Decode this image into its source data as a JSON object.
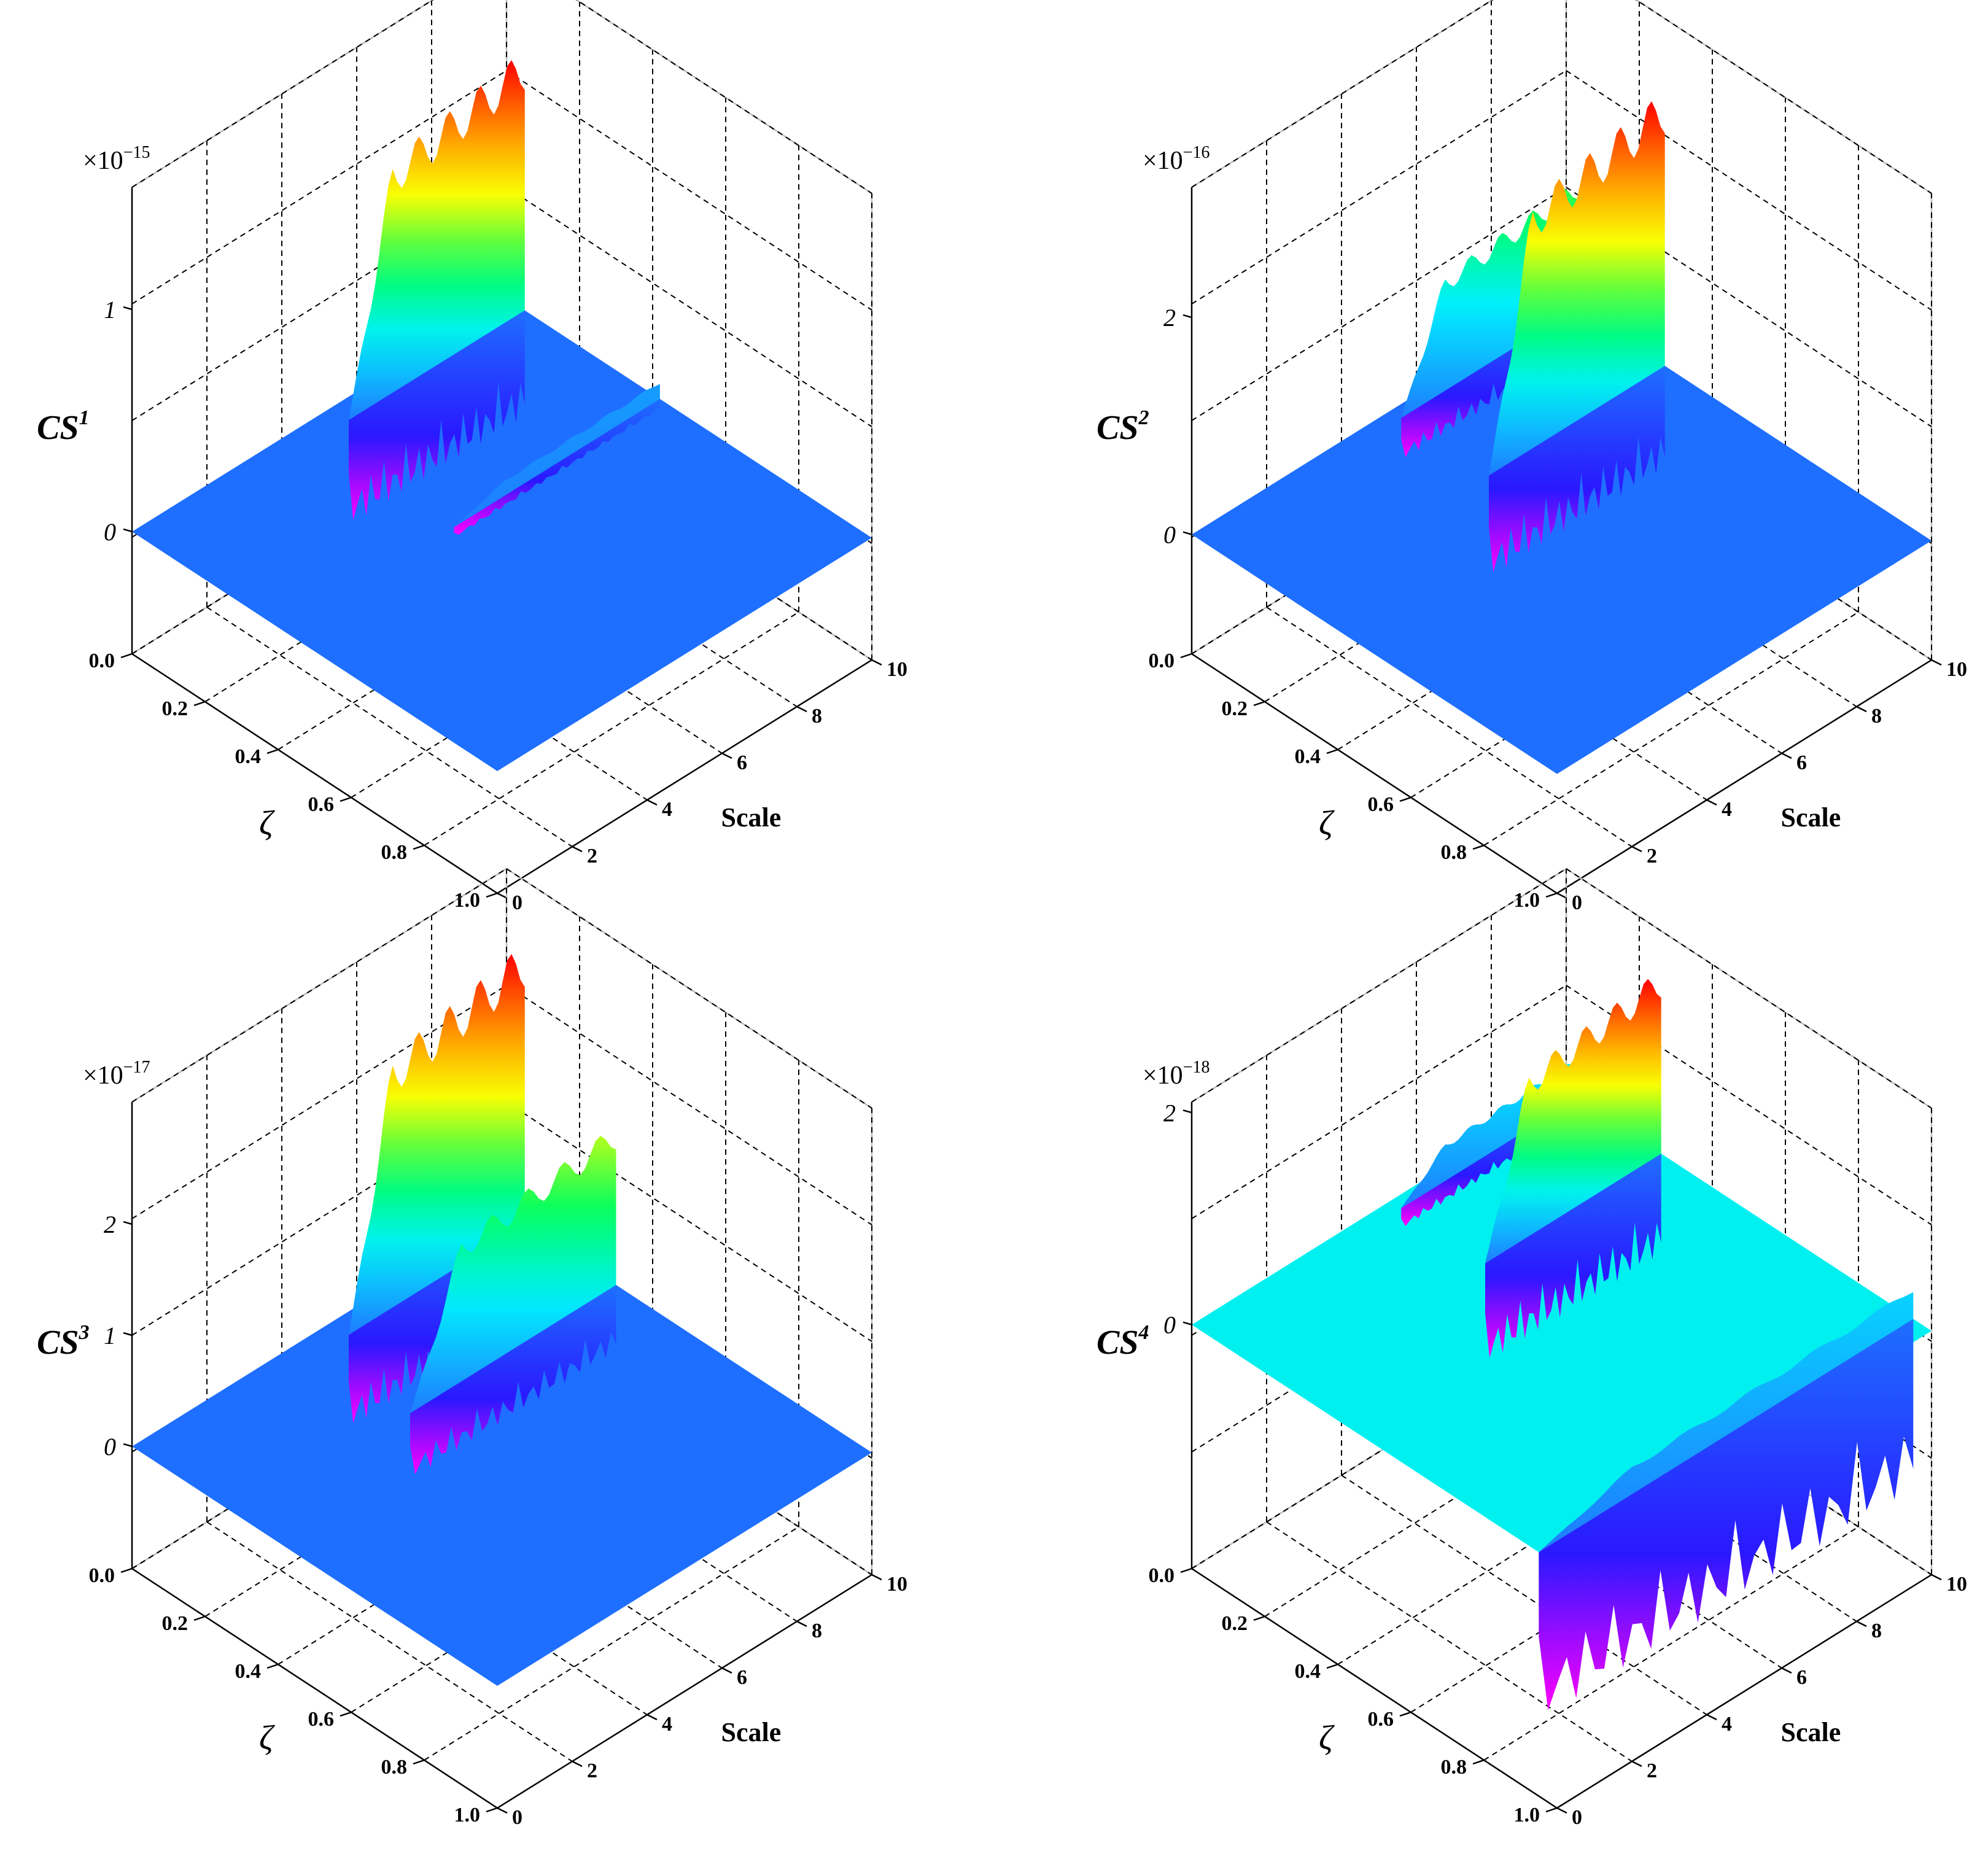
{
  "figure": {
    "background": "#ffffff"
  },
  "chart_data": [
    {
      "type": "surface",
      "panel": "top-left",
      "zlabel_base": "CS",
      "zlabel_sup": "1",
      "multiplier_base": "×10",
      "multiplier_exp": "−15",
      "xlabel": "ζ",
      "ylabel": "Scale",
      "x_ticks": [
        "0.0",
        "0.2",
        "0.4",
        "0.6",
        "0.8",
        "1.0"
      ],
      "y_ticks": [
        "0",
        "2",
        "4",
        "6",
        "8",
        "10"
      ],
      "z_ticks": [
        {
          "label": "1",
          "value": 1
        },
        {
          "label": "0",
          "value": 0
        }
      ],
      "xlim": [
        0,
        1
      ],
      "ylim": [
        0,
        10
      ],
      "zlim": [
        -0.55,
        1.55
      ],
      "grid": true,
      "colormap": "rainbow",
      "ridges": [
        {
          "x": 0.05,
          "y_range": [
            5.3,
            10
          ],
          "peak": 1.18,
          "trough": -0.48
        },
        {
          "x": 0.42,
          "y_range": [
            4.5,
            10
          ],
          "peak": 0.08,
          "trough": -0.05
        }
      ]
    },
    {
      "type": "surface",
      "panel": "top-right",
      "zlabel_base": "CS",
      "zlabel_sup": "2",
      "multiplier_base": "×10",
      "multiplier_exp": "−16",
      "xlabel": "ζ",
      "ylabel": "Scale",
      "x_ticks": [
        "0.0",
        "0.2",
        "0.4",
        "0.6",
        "0.8",
        "1.0"
      ],
      "y_ticks": [
        "0",
        "2",
        "4",
        "6",
        "8",
        "10"
      ],
      "z_ticks": [
        {
          "label": "2",
          "value": 2
        },
        {
          "label": "0",
          "value": 0
        }
      ],
      "xlim": [
        0,
        1
      ],
      "ylim": [
        0,
        10
      ],
      "zlim": [
        -1.1,
        3.2
      ],
      "grid": true,
      "colormap": "rainbow",
      "ridges": [
        {
          "x": 0.03,
          "y_range": [
            5.3,
            10
          ],
          "peak": 1.2,
          "trough": -0.4
        },
        {
          "x": 0.27,
          "y_range": [
            5.3,
            10
          ],
          "peak": 2.55,
          "trough": -0.95
        }
      ]
    },
    {
      "type": "surface",
      "panel": "bottom-left",
      "zlabel_base": "CS",
      "zlabel_sup": "3",
      "multiplier_base": "×10",
      "multiplier_exp": "−17",
      "xlabel": "ζ",
      "ylabel": "Scale",
      "x_ticks": [
        "0.0",
        "0.2",
        "0.4",
        "0.6",
        "0.8",
        "1.0"
      ],
      "y_ticks": [
        "0",
        "2",
        "4",
        "6",
        "8",
        "10"
      ],
      "z_ticks": [
        {
          "label": "2",
          "value": 2
        },
        {
          "label": "1",
          "value": 1
        },
        {
          "label": "0",
          "value": 0
        }
      ],
      "xlim": [
        0,
        1
      ],
      "ylim": [
        0,
        10
      ],
      "zlim": [
        -1.1,
        3.1
      ],
      "grid": true,
      "colormap": "rainbow",
      "ridges": [
        {
          "x": 0.05,
          "y_range": [
            5.3,
            10
          ],
          "peak": 2.55,
          "trough": -0.85
        },
        {
          "x": 0.3,
          "y_range": [
            4.5,
            10
          ],
          "peak": 1.45,
          "trough": -0.6
        }
      ]
    },
    {
      "type": "surface",
      "panel": "bottom-right",
      "zlabel_base": "CS",
      "zlabel_sup": "4",
      "multiplier_base": "×10",
      "multiplier_exp": "−18",
      "xlabel": "ζ",
      "ylabel": "Scale",
      "x_ticks": [
        "0.0",
        "0.2",
        "0.4",
        "0.6",
        "0.8",
        "1.0"
      ],
      "y_ticks": [
        "0",
        "2",
        "4",
        "6",
        "8",
        "10"
      ],
      "z_ticks": [
        {
          "label": "2",
          "value": 2
        },
        {
          "label": "0",
          "value": 0
        }
      ],
      "xlim": [
        0,
        1
      ],
      "ylim": [
        0,
        10
      ],
      "zlim": [
        -2.3,
        2.1
      ],
      "grid": true,
      "colormap": "rainbow",
      "ridges": [
        {
          "x": 0.03,
          "y_range": [
            5.3,
            10
          ],
          "peak": 0.4,
          "trough": -0.2
        },
        {
          "x": 0.26,
          "y_range": [
            5.3,
            10
          ],
          "peak": 1.75,
          "trough": -0.95
        },
        {
          "x": 0.95,
          "y_range": [
            0,
            10
          ],
          "peak": 0.3,
          "trough": -1.6
        }
      ]
    }
  ]
}
